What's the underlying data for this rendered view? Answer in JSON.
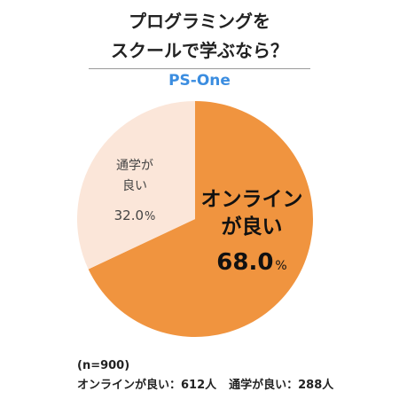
{
  "header": {
    "title_line1": "プログラミングを",
    "title_line2": "スクールで学ぶなら？",
    "brand": "PS-One"
  },
  "chart_data": {
    "type": "pie",
    "slices": [
      {
        "label_lines": [
          "オンライン",
          "が良い"
        ],
        "value": 68.0,
        "value_text": "68.0",
        "unit": "%",
        "color": "#f0943f"
      },
      {
        "label_lines": [
          "通学が",
          "良い"
        ],
        "value": 32.0,
        "value_text": "32.0",
        "unit": "%",
        "color": "#fbe6d9"
      }
    ]
  },
  "footer": {
    "n_text": "(n=900)",
    "online_count": "オンラインが良い：612人",
    "commute_count": "通学が良い：288人"
  }
}
